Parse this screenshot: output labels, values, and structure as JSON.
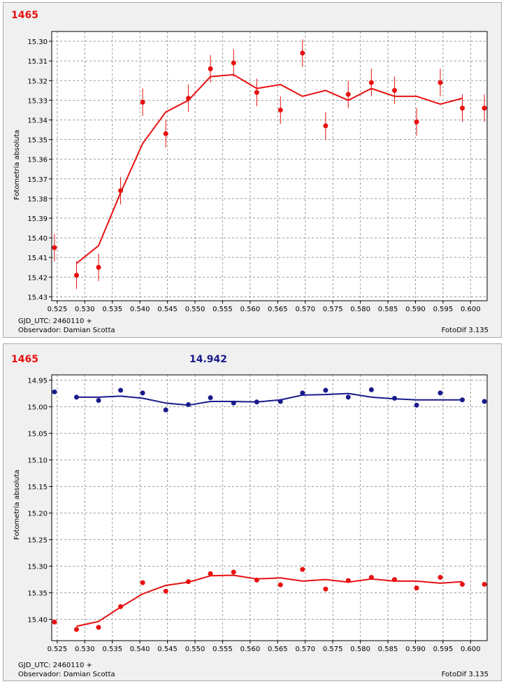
{
  "chart_data": [
    {
      "type": "scatter",
      "title": "1465",
      "title_color": "#e81010",
      "ylabel": "Fotometría absoluta",
      "xlim": [
        0.524,
        0.603
      ],
      "ylim": [
        15.295,
        15.432
      ],
      "y_inverted": true,
      "x_ticks": [
        "0.525",
        "0.530",
        "0.535",
        "0.540",
        "0.545",
        "0.550",
        "0.555",
        "0.560",
        "0.565",
        "0.570",
        "0.575",
        "0.580",
        "0.585",
        "0.590",
        "0.595",
        "0.600"
      ],
      "y_ticks": [
        "15.30",
        "15.31",
        "15.32",
        "15.33",
        "15.34",
        "15.35",
        "15.36",
        "15.37",
        "15.38",
        "15.39",
        "15.40",
        "15.41",
        "15.42",
        "15.43"
      ],
      "grid": true,
      "series": [
        {
          "name": "1465",
          "color": "#e81010",
          "x": [
            0.5245,
            0.5285,
            0.5325,
            0.5365,
            0.5405,
            0.5447,
            0.5488,
            0.5528,
            0.557,
            0.5612,
            0.5655,
            0.5695,
            0.5737,
            0.5778,
            0.582,
            0.5862,
            0.5902,
            0.5945,
            0.5985,
            0.6025
          ],
          "y": [
            15.405,
            15.419,
            15.415,
            15.376,
            15.331,
            15.347,
            15.329,
            15.314,
            15.311,
            15.326,
            15.335,
            15.306,
            15.343,
            15.327,
            15.321,
            15.325,
            15.341,
            15.321,
            15.334,
            15.334
          ],
          "err": [
            0.007,
            0.007,
            0.007,
            0.007,
            0.007,
            0.007,
            0.007,
            0.007,
            0.007,
            0.007,
            0.007,
            0.007,
            0.007,
            0.007,
            0.007,
            0.007,
            0.007,
            0.007,
            0.007,
            0.007
          ],
          "fit_x": [
            0.5285,
            0.5325,
            0.5365,
            0.5405,
            0.5447,
            0.5488,
            0.5528,
            0.557,
            0.5612,
            0.5655,
            0.5695,
            0.5737,
            0.5778,
            0.582,
            0.5862,
            0.5902,
            0.5945,
            0.5985
          ],
          "fit_y": [
            15.413,
            15.404,
            15.377,
            15.352,
            15.336,
            15.33,
            15.318,
            15.317,
            15.324,
            15.322,
            15.328,
            15.325,
            15.33,
            15.324,
            15.328,
            15.328,
            15.332,
            15.329
          ]
        }
      ],
      "footer_left_1": "GJD_UTC: 2460110 +",
      "footer_left_2": "Observador: Damian Scotta",
      "footer_right": "FotoDif 3.135"
    },
    {
      "type": "scatter",
      "title": "1465",
      "title_color": "#e81010",
      "title2": "14.942",
      "title2_color": "#1a1a8c",
      "ylabel": "Fotometría absoluta",
      "xlim": [
        0.524,
        0.603
      ],
      "ylim": [
        14.94,
        15.44
      ],
      "y_inverted": true,
      "x_ticks": [
        "0.525",
        "0.530",
        "0.535",
        "0.540",
        "0.545",
        "0.550",
        "0.555",
        "0.560",
        "0.565",
        "0.570",
        "0.575",
        "0.580",
        "0.585",
        "0.590",
        "0.595",
        "0.600"
      ],
      "y_ticks": [
        "14.95",
        "15.00",
        "15.05",
        "15.10",
        "15.15",
        "15.20",
        "15.25",
        "15.30",
        "15.35",
        "15.40"
      ],
      "grid": true,
      "series": [
        {
          "name": "14.942",
          "color": "#1a1a8c",
          "x": [
            0.5245,
            0.5285,
            0.5325,
            0.5365,
            0.5405,
            0.5447,
            0.5488,
            0.5528,
            0.557,
            0.5612,
            0.5655,
            0.5695,
            0.5737,
            0.5778,
            0.582,
            0.5862,
            0.5902,
            0.5945,
            0.5985,
            0.6025
          ],
          "y": [
            14.972,
            14.982,
            14.988,
            14.969,
            14.974,
            15.006,
            14.996,
            14.983,
            14.993,
            14.991,
            14.99,
            14.974,
            14.969,
            14.982,
            14.968,
            14.984,
            14.997,
            14.974,
            14.987,
            14.99
          ],
          "fit_x": [
            0.5285,
            0.5325,
            0.5365,
            0.5405,
            0.5447,
            0.5488,
            0.5528,
            0.557,
            0.5612,
            0.5655,
            0.5695,
            0.5737,
            0.5778,
            0.582,
            0.5862,
            0.5902,
            0.5945,
            0.5985
          ],
          "fit_y": [
            14.982,
            14.982,
            14.98,
            14.984,
            14.993,
            14.997,
            14.99,
            14.99,
            14.991,
            14.987,
            14.978,
            14.977,
            14.975,
            14.982,
            14.985,
            14.987,
            14.987,
            14.987
          ]
        },
        {
          "name": "1465",
          "color": "#e81010",
          "x": [
            0.5245,
            0.5285,
            0.5325,
            0.5365,
            0.5405,
            0.5447,
            0.5488,
            0.5528,
            0.557,
            0.5612,
            0.5655,
            0.5695,
            0.5737,
            0.5778,
            0.582,
            0.5862,
            0.5902,
            0.5945,
            0.5985,
            0.6025
          ],
          "y": [
            15.405,
            15.419,
            15.415,
            15.376,
            15.331,
            15.347,
            15.329,
            15.314,
            15.311,
            15.326,
            15.335,
            15.306,
            15.343,
            15.327,
            15.321,
            15.325,
            15.341,
            15.321,
            15.334,
            15.334
          ],
          "fit_x": [
            0.5285,
            0.5325,
            0.5365,
            0.5405,
            0.5447,
            0.5488,
            0.5528,
            0.557,
            0.5612,
            0.5655,
            0.5695,
            0.5737,
            0.5778,
            0.582,
            0.5862,
            0.5902,
            0.5945,
            0.5985
          ],
          "fit_y": [
            15.413,
            15.404,
            15.377,
            15.352,
            15.336,
            15.33,
            15.318,
            15.317,
            15.324,
            15.322,
            15.328,
            15.325,
            15.33,
            15.324,
            15.328,
            15.328,
            15.332,
            15.329
          ]
        }
      ],
      "footer_left_1": "GJD_UTC: 2460110 +",
      "footer_left_2": "Observador: Damian Scotta",
      "footer_right": "FotoDif 3.135"
    }
  ]
}
